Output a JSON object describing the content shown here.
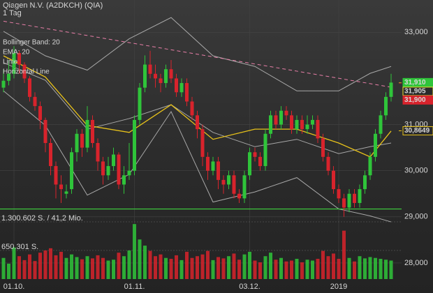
{
  "chart_data": {
    "type": "candlestick",
    "title": "Qiagen N.V. (A2DKCH) (QIA)",
    "subtitle": "1 Tag",
    "categories": [
      null,
      null,
      "01.10.",
      null,
      null,
      null,
      null,
      null,
      null,
      null,
      null,
      null,
      null,
      null,
      null,
      null,
      null,
      null,
      null,
      null,
      null,
      null,
      null,
      null,
      null,
      "01.11.",
      null,
      null,
      null,
      null,
      null,
      null,
      null,
      null,
      null,
      null,
      null,
      null,
      null,
      null,
      null,
      null,
      null,
      null,
      null,
      null,
      null,
      "03.12.",
      null,
      null,
      null,
      null,
      null,
      null,
      null,
      null,
      null,
      null,
      null,
      null,
      null,
      null,
      null,
      null,
      "2019",
      null,
      null,
      null,
      null,
      null,
      null,
      null,
      null,
      null,
      null
    ],
    "open": [
      31.8,
      31.95,
      32.1,
      32.55,
      32.3,
      32.0,
      31.6,
      31.4,
      31.1,
      30.6,
      30.1,
      29.7,
      29.5,
      29.6,
      30.4,
      30.8,
      30.5,
      31.1,
      30.6,
      30.2,
      29.9,
      30.1,
      30.35,
      29.7,
      29.9,
      30.0,
      31.1,
      31.8,
      32.3,
      32.1,
      32.0,
      31.9,
      32.2,
      32.0,
      31.7,
      31.9,
      31.5,
      31.2,
      30.9,
      30.3,
      30.0,
      30.2,
      29.8,
      29.7,
      29.9,
      29.5,
      29.4,
      29.9,
      30.4,
      30.3,
      30.1,
      30.8,
      31.2,
      31.0,
      31.3,
      31.2,
      30.9,
      31.1,
      30.9,
      31.0,
      31.1,
      30.7,
      30.3,
      30.0,
      29.6,
      29.4,
      29.2,
      29.5,
      29.3,
      29.6,
      29.9,
      30.3,
      30.8,
      31.2,
      31.6
    ],
    "high": [
      32.2,
      32.4,
      32.7,
      32.6,
      32.35,
      32.05,
      31.7,
      31.5,
      31.15,
      30.7,
      30.2,
      29.9,
      29.7,
      30.5,
      30.9,
      30.9,
      31.4,
      31.2,
      30.7,
      30.3,
      30.3,
      30.5,
      30.4,
      30.1,
      30.6,
      31.2,
      31.9,
      32.5,
      32.6,
      32.3,
      32.1,
      32.3,
      32.4,
      32.1,
      32.0,
      32.0,
      31.6,
      31.3,
      31.0,
      30.4,
      30.3,
      30.3,
      29.9,
      30.0,
      30.0,
      29.6,
      30.0,
      30.5,
      30.5,
      30.4,
      30.9,
      31.3,
      31.3,
      31.4,
      31.4,
      31.3,
      31.2,
      31.2,
      31.2,
      31.2,
      31.2,
      30.8,
      30.4,
      30.1,
      29.7,
      29.5,
      29.6,
      29.6,
      29.7,
      30.0,
      30.4,
      30.9,
      31.3,
      31.7,
      32.1
    ],
    "low": [
      31.7,
      31.85,
      32.0,
      32.1,
      31.9,
      31.5,
      31.3,
      30.9,
      30.4,
      29.9,
      29.4,
      29.3,
      29.4,
      29.5,
      30.2,
      30.3,
      30.4,
      30.5,
      30.0,
      29.7,
      29.8,
      30.0,
      29.6,
      29.5,
      29.8,
      29.9,
      31.0,
      31.7,
      32.0,
      31.8,
      31.7,
      31.8,
      31.9,
      31.6,
      31.6,
      31.4,
      31.1,
      30.7,
      30.1,
      29.8,
      29.9,
      29.6,
      29.5,
      29.6,
      29.4,
      29.3,
      29.3,
      29.8,
      30.2,
      30.0,
      30.0,
      30.7,
      30.9,
      30.9,
      31.1,
      30.8,
      30.8,
      30.8,
      30.8,
      30.9,
      30.6,
      30.2,
      29.9,
      29.5,
      29.3,
      29.0,
      29.1,
      29.2,
      29.2,
      29.5,
      29.8,
      30.2,
      30.7,
      31.1,
      31.5
    ],
    "close": [
      31.95,
      32.1,
      32.55,
      32.3,
      32.0,
      31.6,
      31.4,
      31.1,
      30.6,
      30.1,
      29.7,
      29.6,
      29.55,
      30.4,
      30.8,
      30.5,
      31.1,
      30.6,
      30.2,
      29.9,
      30.1,
      30.35,
      29.7,
      29.9,
      30.0,
      31.1,
      31.8,
      32.3,
      32.1,
      32.0,
      31.9,
      32.2,
      32.0,
      31.7,
      31.9,
      31.5,
      31.2,
      30.9,
      30.3,
      30.0,
      30.2,
      29.8,
      29.7,
      29.9,
      29.5,
      29.4,
      29.9,
      30.4,
      30.3,
      30.1,
      30.8,
      31.2,
      31.0,
      31.3,
      31.2,
      30.9,
      31.1,
      30.9,
      31.0,
      31.1,
      30.7,
      30.3,
      30.0,
      29.6,
      29.4,
      29.2,
      29.5,
      29.3,
      29.6,
      29.9,
      30.3,
      30.8,
      31.2,
      31.6,
      31.91
    ],
    "volume": [
      480000,
      350000,
      720000,
      520000,
      430000,
      560000,
      410000,
      600000,
      650000,
      700000,
      540000,
      620000,
      480000,
      560000,
      500000,
      450000,
      520000,
      470000,
      540000,
      480000,
      420000,
      440000,
      600000,
      520000,
      650000,
      1250000,
      900000,
      760000,
      640000,
      520000,
      560000,
      480000,
      460000,
      540000,
      430000,
      620000,
      480000,
      520000,
      560000,
      640000,
      430000,
      500000,
      470000,
      520000,
      580000,
      440000,
      560000,
      620000,
      420000,
      380000,
      520000,
      600000,
      440000,
      480000,
      400000,
      420000,
      460000,
      380000,
      440000,
      420000,
      460000,
      640000,
      520000,
      580000,
      460000,
      1100000,
      480000,
      400000,
      520000,
      470000,
      500000,
      480000,
      460000,
      440000,
      420000
    ],
    "up_color": "#2fc43a",
    "down_color": "#d8232c",
    "ylim": [
      27.5,
      33.7
    ],
    "yticks": [
      {
        "value": 33,
        "label": "33,000"
      },
      {
        "value": 31,
        "label": "31,000"
      },
      {
        "value": 30,
        "label": "30,000"
      },
      {
        "value": 29,
        "label": "29,000"
      },
      {
        "value": 28,
        "label": "28,000"
      }
    ],
    "volume_lim": [
      0,
      1300602
    ],
    "volume_ticks": [
      {
        "value": 1300602,
        "label": "1.300.602 S. / 41,2 Mio."
      },
      {
        "value": 650301,
        "label": "650.301 S."
      }
    ],
    "bollinger": {
      "name": "Bollinger Band: 20",
      "color": "#a8a8a8",
      "x": [
        0,
        8,
        16,
        24,
        32,
        40,
        48,
        56,
        64,
        70,
        74
      ],
      "upper": [
        33.02,
        32.49,
        32.18,
        32.86,
        33.32,
        32.49,
        32.26,
        31.73,
        31.73,
        32.11,
        32.26
      ],
      "middle": [
        32.34,
        31.96,
        30.9,
        31.13,
        31.43,
        30.83,
        30.52,
        30.68,
        30.37,
        30.52,
        30.6
      ],
      "lower": [
        31.73,
        30.98,
        29.47,
        29.92,
        31.28,
        29.32,
        29.54,
        29.85,
        29.17,
        29.02,
        28.89
      ]
    },
    "ema": {
      "name": "EMA: 20",
      "color": "#e8c21a",
      "x": [
        0,
        8,
        16,
        24,
        32,
        40,
        48,
        56,
        64,
        70,
        74
      ],
      "values": [
        32.49,
        32.03,
        30.98,
        30.83,
        31.43,
        30.68,
        30.9,
        30.9,
        30.6,
        30.3,
        30.86
      ]
    },
    "trendline": {
      "name": "Linie",
      "color": "#e87fa8",
      "x": [
        0,
        74
      ],
      "values": [
        33.24,
        31.81
      ]
    },
    "hline": {
      "name": "Horizontal Line",
      "color": "#3fd13f",
      "value": 29.17
    },
    "price_labels": [
      {
        "value": 31.91,
        "label": "31,910",
        "color": "#2fc43a"
      },
      {
        "value": 31.905,
        "label": "31,905",
        "color": "#f0e030"
      },
      {
        "value": 31.9,
        "label": "31,900",
        "color": "#d8232c"
      },
      {
        "value": 30.8649,
        "label": "30,8649",
        "color": "#e8c21a"
      }
    ],
    "grid": true
  }
}
